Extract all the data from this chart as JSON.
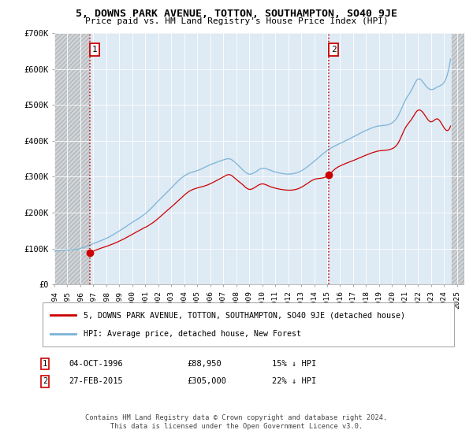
{
  "title": "5, DOWNS PARK AVENUE, TOTTON, SOUTHAMPTON, SO40 9JE",
  "subtitle": "Price paid vs. HM Land Registry's House Price Index (HPI)",
  "legend_line1": "5, DOWNS PARK AVENUE, TOTTON, SOUTHAMPTON, SO40 9JE (detached house)",
  "legend_line2": "HPI: Average price, detached house, New Forest",
  "annotation1_label": "1",
  "annotation1_date": "04-OCT-1996",
  "annotation1_price": "£88,950",
  "annotation1_hpi": "15% ↓ HPI",
  "annotation1_year": 1996.75,
  "annotation1_value": 88950,
  "annotation2_label": "2",
  "annotation2_date": "27-FEB-2015",
  "annotation2_price": "£305,000",
  "annotation2_hpi": "22% ↓ HPI",
  "annotation2_year": 2015.15,
  "annotation2_value": 305000,
  "hpi_color": "#7ab4d8",
  "price_color": "#cc0000",
  "dashed_line_color": "#cc0000",
  "background_plot": "#deeaf4",
  "ylim": [
    0,
    700000
  ],
  "yticks": [
    0,
    100000,
    200000,
    300000,
    400000,
    500000,
    600000,
    700000
  ],
  "ytick_labels": [
    "£0",
    "£100K",
    "£200K",
    "£300K",
    "£400K",
    "£500K",
    "£600K",
    "£700K"
  ],
  "xmin": 1994,
  "xmax": 2025.5,
  "footer1": "Contains HM Land Registry data © Crown copyright and database right 2024.",
  "footer2": "This data is licensed under the Open Government Licence v3.0."
}
